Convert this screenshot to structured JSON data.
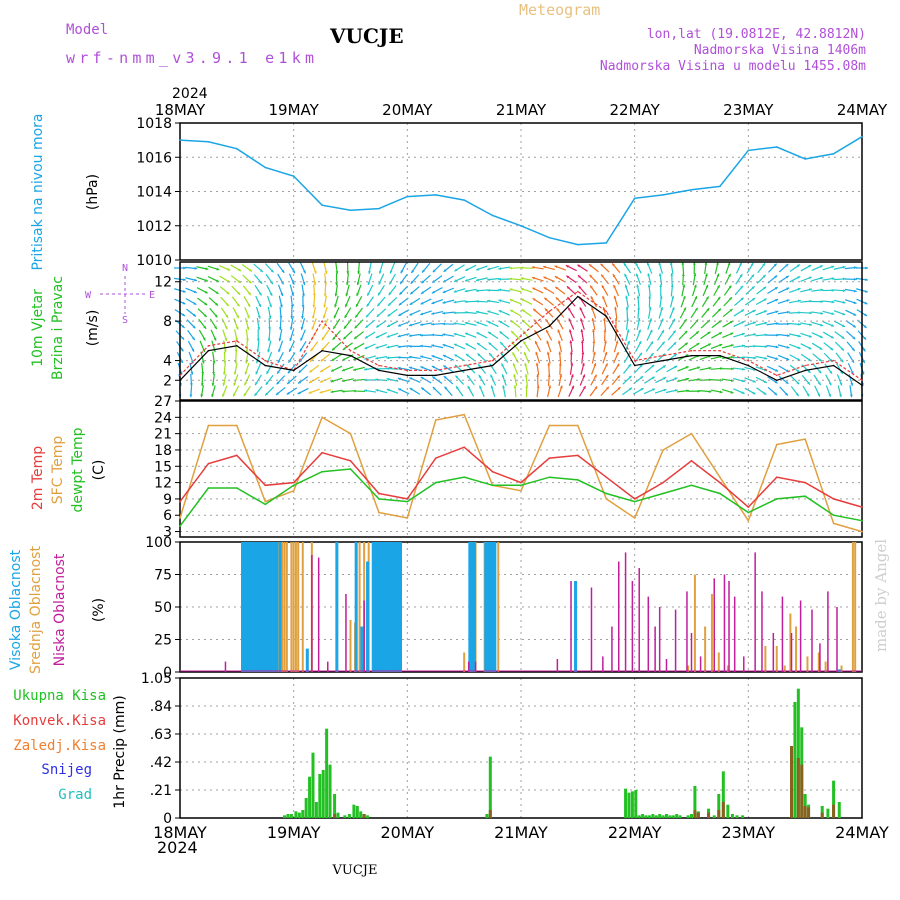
{
  "header": {
    "title": "VUCJE",
    "meteogram": "Meteogram",
    "model_label": "Model",
    "model_value": "wrf-nmm_v3.9.1  e1km",
    "lonlat": "lon,lat (19.0812E, 42.8812N)",
    "elevation": "Nadmorska Visina 1406m",
    "model_elevation": "Nadmorska Visina u modelu 1455.08m",
    "watermark": "made by Angel",
    "footer_station": "VUCJE"
  },
  "time_axis": {
    "year": "2024",
    "labels": [
      "18MAY",
      "19MAY",
      "20MAY",
      "21MAY",
      "22MAY",
      "23MAY",
      "24MAY"
    ]
  },
  "colors": {
    "pressure": "#1aa5e6",
    "temp2m": "#e63c3c",
    "sfc_temp": "#e0a040",
    "dewpoint": "#22c022",
    "high_cloud": "#1aa5e6",
    "mid_cloud": "#e0a040",
    "low_cloud": "#c01e9a",
    "total_precip": "#22c022",
    "convective_precip": "#e63c3c",
    "freezing_precip": "#f08030",
    "snow": "#3030e0",
    "hail": "#20c0c0",
    "title_purple": "#b050d8",
    "meteogram_orange": "#e8c080"
  },
  "chart_data": [
    {
      "id": "pressure",
      "type": "line",
      "ylabel": [
        "Pritisak na nivou mora",
        "(hPa)"
      ],
      "ylim": [
        1010,
        1018
      ],
      "yticks": [
        1010,
        1012,
        1014,
        1016,
        1018
      ],
      "x": [
        0,
        0.25,
        0.5,
        0.75,
        1,
        1.25,
        1.5,
        1.75,
        2,
        2.25,
        2.5,
        2.75,
        3,
        3.25,
        3.5,
        3.75,
        4,
        4.25,
        4.5,
        4.75,
        5,
        5.25,
        5.5,
        5.75,
        6
      ],
      "series": [
        {
          "values": [
            1017.0,
            1016.9,
            1016.5,
            1015.4,
            1014.9,
            1013.2,
            1012.9,
            1013.0,
            1013.7,
            1013.8,
            1013.5,
            1012.6,
            1012.0,
            1011.3,
            1010.9,
            1011.0,
            1013.6,
            1013.8,
            1014.1,
            1014.3,
            1016.4,
            1016.6,
            1015.9,
            1016.2,
            1017.2
          ]
        }
      ]
    },
    {
      "id": "wind",
      "type": "line",
      "ylabel": [
        "10m Vjetar",
        "Brzina i Pravac",
        "(m/s)"
      ],
      "compass": {
        "N": "N",
        "W": "W",
        "E": "E",
        "S": "S"
      },
      "ylim": [
        0,
        14
      ],
      "yticks": [
        2,
        4,
        8,
        12
      ],
      "x": [
        0,
        0.25,
        0.5,
        0.75,
        1,
        1.25,
        1.5,
        1.75,
        2,
        2.25,
        2.5,
        2.75,
        3,
        3.25,
        3.5,
        3.75,
        4,
        4.25,
        4.5,
        4.75,
        5,
        5.25,
        5.5,
        5.75,
        6
      ],
      "series": [
        {
          "values": [
            2.5,
            5.5,
            6.0,
            4.0,
            3.0,
            8.0,
            5.0,
            3.5,
            3.0,
            3.0,
            3.5,
            4.0,
            6.5,
            9.0,
            11.0,
            9.0,
            4.0,
            4.5,
            5.0,
            5.0,
            4.0,
            2.5,
            3.5,
            4.0,
            2.0
          ]
        },
        {
          "values": [
            2.0,
            5.0,
            5.5,
            3.5,
            3.0,
            5.0,
            4.5,
            3.0,
            2.5,
            2.5,
            3.0,
            3.5,
            6.0,
            7.5,
            10.5,
            8.5,
            3.5,
            4.0,
            4.5,
            4.5,
            3.5,
            2.0,
            3.0,
            3.5,
            1.5
          ]
        }
      ]
    },
    {
      "id": "temperature",
      "type": "line",
      "ylabel": [
        "2m Temp",
        "SFC Temp",
        "dewpt Temp",
        "(C)"
      ],
      "ylim": [
        2,
        27
      ],
      "yticks": [
        3,
        6,
        9,
        12,
        15,
        18,
        21,
        24,
        27
      ],
      "x": [
        0,
        0.25,
        0.5,
        0.75,
        1,
        1.25,
        1.5,
        1.75,
        2,
        2.25,
        2.5,
        2.75,
        3,
        3.25,
        3.5,
        3.75,
        4,
        4.25,
        4.5,
        4.75,
        5,
        5.25,
        5.5,
        5.75,
        6
      ],
      "series": [
        {
          "values": [
            8.5,
            15.5,
            17.0,
            11.5,
            12.0,
            17.5,
            16.0,
            10.0,
            9.0,
            16.5,
            18.5,
            14.0,
            12.0,
            16.5,
            17.0,
            13.0,
            9.0,
            12.0,
            16.0,
            12.0,
            7.5,
            13.0,
            12.0,
            9.0,
            7.5
          ]
        },
        {
          "values": [
            5.5,
            22.5,
            22.5,
            8.5,
            10.5,
            24.0,
            21.0,
            6.5,
            5.5,
            23.5,
            24.5,
            11.5,
            10.5,
            22.5,
            22.5,
            9.0,
            5.5,
            18.0,
            21.0,
            13.0,
            5.0,
            19.0,
            20.0,
            4.5,
            3.0
          ]
        },
        {
          "values": [
            4.0,
            11.0,
            11.0,
            8.0,
            11.5,
            14.0,
            14.5,
            9.0,
            8.5,
            12.0,
            13.0,
            11.5,
            11.5,
            13.0,
            12.5,
            10.0,
            8.5,
            10.0,
            11.5,
            10.0,
            6.5,
            9.0,
            9.5,
            6.0,
            5.0
          ]
        }
      ]
    },
    {
      "id": "clouds",
      "type": "bar",
      "ylabel": [
        "Visoka Oblacnost",
        "Srednja Oblacnost",
        "Niska Oblacnost",
        "(%)"
      ],
      "ylim": [
        0,
        100
      ],
      "yticks": [
        0,
        25,
        50,
        75,
        100
      ],
      "series": [
        {
          "x": [
            0.55,
            0.57,
            0.59,
            0.61,
            0.63,
            0.65,
            0.67,
            0.69,
            0.71,
            0.73,
            0.75,
            0.77,
            0.79,
            0.81,
            0.83,
            0.85,
            0.88,
            1.12,
            1.38,
            1.55,
            1.6,
            1.65,
            1.7,
            1.72,
            1.74,
            1.76,
            1.78,
            1.8,
            1.82,
            1.84,
            1.86,
            1.88,
            1.9,
            1.92,
            1.94,
            2.55,
            2.57,
            2.59,
            2.69,
            2.71,
            2.73,
            2.75,
            2.77,
            3.48,
            5.8
          ],
          "values": [
            100,
            100,
            100,
            100,
            100,
            100,
            100,
            100,
            100,
            100,
            100,
            100,
            100,
            100,
            100,
            100,
            100,
            18,
            100,
            100,
            35,
            85,
            100,
            100,
            100,
            100,
            100,
            100,
            100,
            100,
            100,
            100,
            100,
            100,
            100,
            100,
            100,
            100,
            100,
            100,
            100,
            100,
            100,
            70,
            2
          ]
        },
        {
          "x": [
            0.56,
            0.58,
            0.62,
            0.66,
            0.7,
            0.74,
            0.78,
            0.82,
            0.86,
            0.9,
            0.92,
            0.94,
            0.98,
            1.0,
            1.02,
            1.04,
            1.08,
            1.12,
            1.16,
            1.5,
            1.54,
            1.58,
            1.62,
            1.66,
            1.7,
            1.73,
            1.76,
            1.8,
            1.84,
            1.88,
            1.92,
            2.5,
            2.56,
            2.6,
            2.68,
            2.72,
            2.76,
            2.8,
            4.47,
            4.53,
            4.62,
            4.68,
            4.74,
            4.82,
            5.15,
            5.25,
            5.32,
            5.37,
            5.42,
            5.52,
            5.62,
            5.68,
            5.82,
            5.92,
            5.94
          ],
          "values": [
            40,
            100,
            100,
            100,
            100,
            100,
            100,
            100,
            100,
            100,
            100,
            100,
            100,
            100,
            100,
            100,
            100,
            10,
            100,
            40,
            38,
            100,
            100,
            100,
            100,
            100,
            100,
            100,
            100,
            100,
            100,
            15,
            8,
            100,
            100,
            100,
            100,
            100,
            5,
            75,
            35,
            60,
            15,
            5,
            20,
            20,
            5,
            45,
            35,
            12,
            15,
            8,
            5,
            100,
            100
          ]
        },
        {
          "x": [
            0.4,
            1.16,
            1.22,
            1.3,
            1.46,
            1.62,
            2.54,
            2.6,
            3.32,
            3.44,
            3.62,
            3.72,
            3.8,
            3.86,
            3.92,
            3.98,
            4.04,
            4.12,
            4.18,
            4.22,
            4.28,
            4.36,
            4.46,
            4.5,
            4.58,
            4.7,
            4.79,
            4.83,
            4.88,
            4.96,
            5.06,
            5.12,
            5.22,
            5.3,
            5.38,
            5.46,
            5.56,
            5.63,
            5.7,
            5.78
          ],
          "values": [
            8,
            90,
            88,
            8,
            60,
            55,
            8,
            8,
            10,
            70,
            65,
            12,
            35,
            85,
            92,
            70,
            80,
            58,
            35,
            50,
            10,
            48,
            62,
            30,
            12,
            72,
            75,
            70,
            58,
            12,
            92,
            62,
            30,
            58,
            30,
            55,
            48,
            22,
            62,
            50
          ]
        }
      ]
    },
    {
      "id": "precip",
      "type": "bar",
      "ylabel": [
        "1hr Precip (mm)"
      ],
      "legend": [
        "Ukupna Kisa",
        "Konvek.Kisa",
        "Zaledj.Kisa",
        "Snijeg",
        "Grad"
      ],
      "ylim": [
        0,
        1.05
      ],
      "yticks": [
        0,
        0.21,
        0.42,
        0.63,
        0.84,
        1.05
      ],
      "series": [
        {
          "x": [
            0.92,
            0.95,
            0.98,
            1.02,
            1.05,
            1.08,
            1.11,
            1.14,
            1.17,
            1.2,
            1.23,
            1.26,
            1.29,
            1.32,
            1.36,
            1.39,
            1.45,
            1.49,
            1.53,
            1.56,
            1.59,
            1.62,
            1.65,
            2.7,
            2.73,
            3.92,
            3.95,
            3.98,
            4.01,
            4.04,
            4.07,
            4.1,
            4.13,
            4.16,
            4.19,
            4.22,
            4.25,
            4.28,
            4.31,
            4.34,
            4.37,
            4.4,
            4.47,
            4.5,
            4.53,
            4.56,
            4.65,
            4.7,
            4.74,
            4.78,
            4.82,
            4.86,
            4.9,
            4.95,
            5.38,
            5.41,
            5.44,
            5.47,
            5.5,
            5.53,
            5.65,
            5.7,
            5.75,
            5.8
          ],
          "values": [
            0.02,
            0.03,
            0.03,
            0.05,
            0.04,
            0.06,
            0.15,
            0.31,
            0.49,
            0.12,
            0.33,
            0.36,
            0.67,
            0.4,
            0.18,
            0.04,
            0.02,
            0.03,
            0.1,
            0.09,
            0.05,
            0.03,
            0.02,
            0.03,
            0.46,
            0.22,
            0.19,
            0.2,
            0.21,
            0.02,
            0.03,
            0.02,
            0.02,
            0.03,
            0.02,
            0.03,
            0.02,
            0.03,
            0.02,
            0.02,
            0.03,
            0.02,
            0.02,
            0.03,
            0.24,
            0.05,
            0.07,
            0.02,
            0.18,
            0.35,
            0.1,
            0.03,
            0.02,
            0.02,
            0.54,
            0.87,
            0.97,
            0.68,
            0.18,
            0.1,
            0.09,
            0.07,
            0.28,
            0.12
          ]
        },
        {
          "x": [
            1.36,
            1.62,
            2.73,
            4.53,
            4.56,
            4.65,
            4.74,
            4.78,
            5.38,
            5.44,
            5.47,
            5.5,
            5.53,
            5.65,
            5.75
          ],
          "values": [
            0.03,
            0.03,
            0.06,
            0.06,
            0.04,
            0.04,
            0.06,
            0.12,
            0.54,
            0.45,
            0.4,
            0.09,
            0.08,
            0.04,
            0.1
          ]
        }
      ]
    }
  ]
}
